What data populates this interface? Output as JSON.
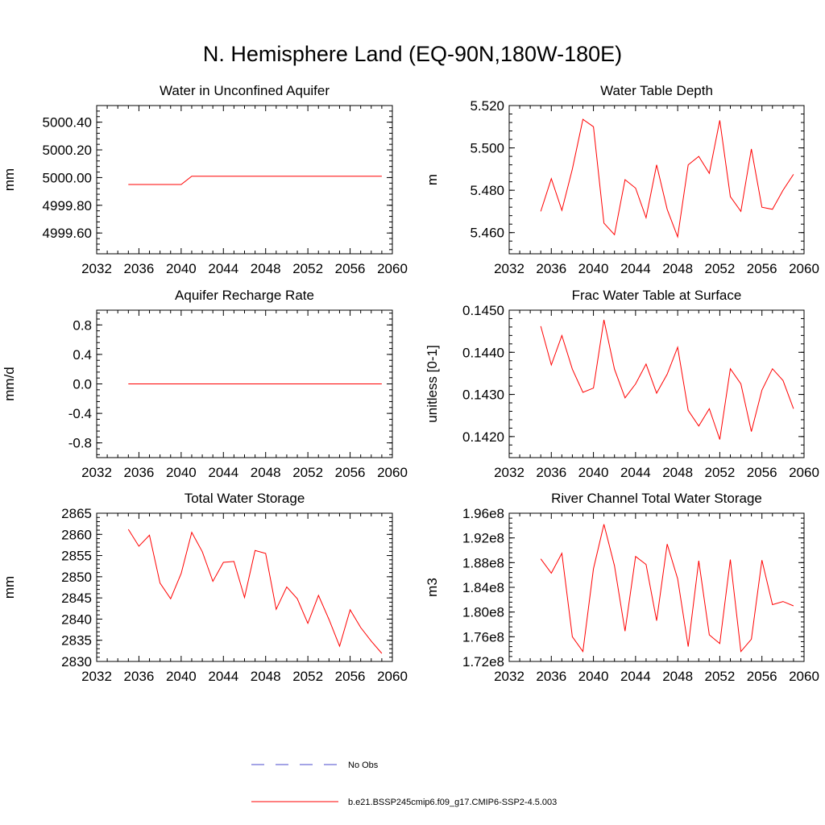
{
  "page": {
    "title": "N. Hemisphere Land (EQ-90N,180W-180E)"
  },
  "legend": {
    "entries": [
      {
        "label": "No Obs",
        "color": "#4a4acc",
        "style": "dashed"
      },
      {
        "label": "b.e21.BSSP245cmip6.f09_g17.CMIP6-SSP2-4.5.003",
        "color": "#ff0000",
        "style": "solid"
      }
    ]
  },
  "chart_data": [
    {
      "type": "line",
      "title": "Water in Unconfined Aquifer",
      "xlabel": "",
      "ylabel": "mm",
      "xlim": [
        2032,
        2060
      ],
      "ylim": [
        4999.45,
        5000.52
      ],
      "x_ticks": [
        "2032",
        "2036",
        "2040",
        "2044",
        "2048",
        "2052",
        "2056",
        "2060"
      ],
      "y_ticks": [
        "4999.60",
        "4999.80",
        "5000.00",
        "5000.20",
        "5000.40"
      ],
      "y_tick_values": [
        4999.6,
        4999.8,
        5000.0,
        5000.2,
        5000.4
      ],
      "series": [
        {
          "color": "#ff0000",
          "x": [
            2035,
            2036,
            2037,
            2038,
            2039,
            2040,
            2041,
            2042,
            2043,
            2044,
            2045,
            2046,
            2047,
            2048,
            2049,
            2050,
            2051,
            2052,
            2053,
            2054,
            2055,
            2056,
            2057,
            2058,
            2059
          ],
          "y": [
            4999.95,
            4999.95,
            4999.95,
            4999.95,
            4999.95,
            4999.95,
            5000.01,
            5000.01,
            5000.01,
            5000.01,
            5000.01,
            5000.01,
            5000.01,
            5000.01,
            5000.01,
            5000.01,
            5000.01,
            5000.01,
            5000.01,
            5000.01,
            5000.01,
            5000.01,
            5000.01,
            5000.01,
            5000.01
          ]
        }
      ]
    },
    {
      "type": "line",
      "title": "Water Table Depth",
      "xlabel": "",
      "ylabel": "m",
      "xlim": [
        2032,
        2060
      ],
      "ylim": [
        5.45,
        5.52
      ],
      "x_ticks": [
        "2032",
        "2036",
        "2040",
        "2044",
        "2048",
        "2052",
        "2056",
        "2060"
      ],
      "y_ticks": [
        "5.460",
        "5.480",
        "5.500",
        "5.520"
      ],
      "y_tick_values": [
        5.46,
        5.48,
        5.5,
        5.52
      ],
      "series": [
        {
          "color": "#ff0000",
          "x": [
            2035,
            2036,
            2037,
            2038,
            2039,
            2040,
            2041,
            2042,
            2043,
            2044,
            2045,
            2046,
            2047,
            2048,
            2049,
            2050,
            2051,
            2052,
            2053,
            2054,
            2055,
            2056,
            2057,
            2058,
            2059
          ],
          "y": [
            5.47,
            5.4855,
            5.4705,
            5.49,
            5.5135,
            5.51,
            5.4645,
            5.459,
            5.485,
            5.481,
            5.467,
            5.492,
            5.471,
            5.458,
            5.492,
            5.496,
            5.488,
            5.513,
            5.477,
            5.47,
            5.4995,
            5.472,
            5.471,
            5.48,
            5.4875
          ]
        }
      ]
    },
    {
      "type": "line",
      "title": "Aquifer Recharge Rate",
      "xlabel": "",
      "ylabel": "mm/d",
      "xlim": [
        2032,
        2060
      ],
      "ylim": [
        -1.0,
        1.0
      ],
      "x_ticks": [
        "2032",
        "2036",
        "2040",
        "2044",
        "2048",
        "2052",
        "2056",
        "2060"
      ],
      "y_ticks": [
        "-0.8",
        "-0.4",
        "0.0",
        "0.4",
        "0.8"
      ],
      "y_tick_values": [
        -0.8,
        -0.4,
        0.0,
        0.4,
        0.8
      ],
      "series": [
        {
          "color": "#ff0000",
          "x": [
            2035,
            2059
          ],
          "y": [
            0.0,
            0.0
          ]
        }
      ]
    },
    {
      "type": "line",
      "title": "Frac Water Table at Surface",
      "xlabel": "",
      "ylabel": "unitless [0-1]",
      "xlim": [
        2032,
        2060
      ],
      "ylim": [
        0.1415,
        0.145
      ],
      "x_ticks": [
        "2032",
        "2036",
        "2040",
        "2044",
        "2048",
        "2052",
        "2056",
        "2060"
      ],
      "y_ticks": [
        "0.1420",
        "0.1430",
        "0.1440",
        "0.1450"
      ],
      "y_tick_values": [
        0.142,
        0.143,
        0.144,
        0.145
      ],
      "series": [
        {
          "color": "#ff0000",
          "x": [
            2035,
            2036,
            2037,
            2038,
            2039,
            2040,
            2041,
            2042,
            2043,
            2044,
            2045,
            2046,
            2047,
            2048,
            2049,
            2050,
            2051,
            2052,
            2053,
            2054,
            2055,
            2056,
            2057,
            2058,
            2059
          ],
          "y": [
            0.14462,
            0.1437,
            0.1444,
            0.1436,
            0.14305,
            0.14315,
            0.14477,
            0.1436,
            0.14292,
            0.14325,
            0.14372,
            0.14303,
            0.14348,
            0.14412,
            0.14262,
            0.14225,
            0.14266,
            0.14193,
            0.14361,
            0.14325,
            0.14212,
            0.1431,
            0.14361,
            0.14333,
            0.14266
          ]
        }
      ]
    },
    {
      "type": "line",
      "title": "Total Water Storage",
      "xlabel": "",
      "ylabel": "mm",
      "xlim": [
        2032,
        2060
      ],
      "ylim": [
        2830,
        2865
      ],
      "x_ticks": [
        "2032",
        "2036",
        "2040",
        "2044",
        "2048",
        "2052",
        "2056",
        "2060"
      ],
      "y_ticks": [
        "2830",
        "2835",
        "2840",
        "2845",
        "2850",
        "2855",
        "2860",
        "2865"
      ],
      "y_tick_values": [
        2830,
        2835,
        2840,
        2845,
        2850,
        2855,
        2860,
        2865
      ],
      "series": [
        {
          "color": "#ff0000",
          "x": [
            2035,
            2036,
            2037,
            2038,
            2039,
            2040,
            2041,
            2042,
            2043,
            2044,
            2045,
            2046,
            2047,
            2048,
            2049,
            2050,
            2051,
            2052,
            2053,
            2054,
            2055,
            2056,
            2057,
            2058,
            2059
          ],
          "y": [
            2861.2,
            2857.2,
            2859.8,
            2848.5,
            2844.8,
            2850.8,
            2860.5,
            2855.9,
            2848.9,
            2853.4,
            2853.6,
            2845.1,
            2856.2,
            2855.5,
            2842.3,
            2847.6,
            2844.8,
            2839.0,
            2845.6,
            2839.9,
            2833.6,
            2842.2,
            2838.0,
            2834.8,
            2831.9
          ]
        }
      ]
    },
    {
      "type": "line",
      "title": "River Channel Total Water Storage",
      "xlabel": "",
      "ylabel": "m3",
      "xlim": [
        2032,
        2060
      ],
      "ylim": [
        172000000,
        196000000
      ],
      "x_ticks": [
        "2032",
        "2036",
        "2040",
        "2044",
        "2048",
        "2052",
        "2056",
        "2060"
      ],
      "y_ticks": [
        "1.72e8",
        "1.76e8",
        "1.80e8",
        "1.84e8",
        "1.88e8",
        "1.92e8",
        "1.96e8"
      ],
      "y_tick_values": [
        172000000,
        176000000,
        180000000,
        184000000,
        188000000,
        192000000,
        196000000
      ],
      "series": [
        {
          "color": "#ff0000",
          "x": [
            2035,
            2036,
            2037,
            2038,
            2039,
            2040,
            2041,
            2042,
            2043,
            2044,
            2045,
            2046,
            2047,
            2048,
            2049,
            2050,
            2051,
            2052,
            2053,
            2054,
            2055,
            2056,
            2057,
            2058,
            2059
          ],
          "y": [
            188600000,
            186300000,
            189500000,
            176000000,
            173600000,
            187000000,
            194200000,
            187500000,
            176900000,
            189000000,
            187700000,
            178600000,
            191000000,
            185400000,
            174400000,
            188300000,
            176300000,
            174900000,
            188500000,
            173600000,
            175600000,
            188400000,
            181200000,
            181700000,
            181000000
          ]
        }
      ]
    }
  ]
}
